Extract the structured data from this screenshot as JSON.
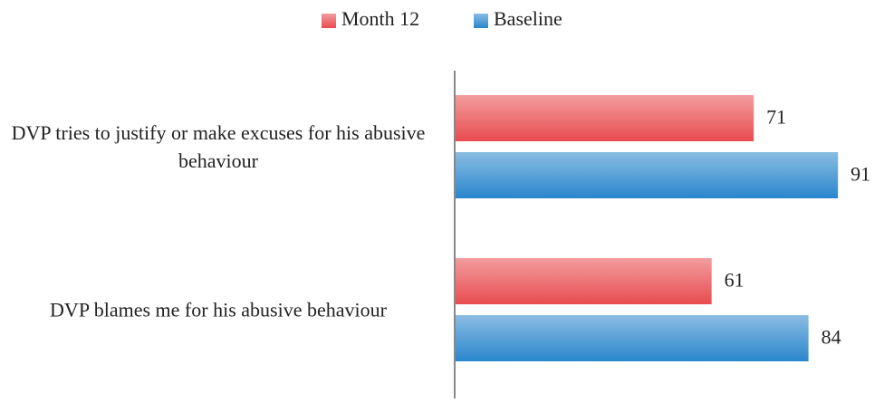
{
  "chart_data": {
    "type": "barh",
    "categories": [
      "DVP tries to justify or make excuses for his abusive behaviour",
      "DVP blames me for his abusive behaviour"
    ],
    "series": [
      {
        "name": "Month 12",
        "color": "#e84c4f",
        "values": [
          71,
          61
        ]
      },
      {
        "name": "Baseline",
        "color": "#2a86cc",
        "values": [
          91,
          84
        ]
      }
    ],
    "xlim": [
      0,
      100
    ],
    "legend": "top"
  }
}
